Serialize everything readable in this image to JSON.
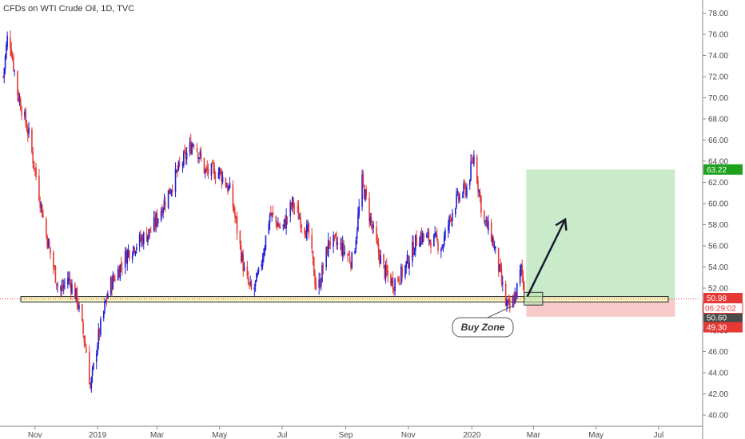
{
  "chart_data": {
    "type": "candlestick",
    "title": "CFDs on WTI Crude Oil, 1D, TVC",
    "y_ticks": [
      40,
      42,
      44,
      46,
      48,
      50,
      52,
      54,
      56,
      58,
      60,
      62,
      64,
      66,
      68,
      70,
      72,
      74,
      76,
      78
    ],
    "y_tick_labels": [
      "40.00",
      "42.00",
      "44.00",
      "46.00",
      "48.00",
      "50.00",
      "52.00",
      "54.00",
      "56.00",
      "58.00",
      "60.00",
      "62.00",
      "64.00",
      "66.00",
      "68.00",
      "70.00",
      "72.00",
      "74.00",
      "76.00",
      "78.00"
    ],
    "ylim": [
      39.2,
      79.2
    ],
    "x_ticks": [
      {
        "label": "Nov",
        "day": 31
      },
      {
        "label": "2019",
        "day": 92
      },
      {
        "label": "Mar",
        "day": 150
      },
      {
        "label": "May",
        "day": 211
      },
      {
        "label": "Jul",
        "day": 272
      },
      {
        "label": "Sep",
        "day": 334
      },
      {
        "label": "Nov",
        "day": 395
      },
      {
        "label": "2020",
        "day": 457
      },
      {
        "label": "Mar",
        "day": 517
      },
      {
        "label": "May",
        "day": 578
      },
      {
        "label": "Jul",
        "day": 639
      }
    ],
    "price_path": [
      {
        "day": 0,
        "price": 72.0
      },
      {
        "day": 5,
        "price": 76.5
      },
      {
        "day": 14,
        "price": 70.5
      },
      {
        "day": 25,
        "price": 66.5
      },
      {
        "day": 42,
        "price": 57.0
      },
      {
        "day": 55,
        "price": 51.5
      },
      {
        "day": 63,
        "price": 53.0
      },
      {
        "day": 72,
        "price": 51.0
      },
      {
        "day": 82,
        "price": 45.5
      },
      {
        "day": 85,
        "price": 42.5
      },
      {
        "day": 92,
        "price": 47.0
      },
      {
        "day": 103,
        "price": 52.0
      },
      {
        "day": 122,
        "price": 55.5
      },
      {
        "day": 145,
        "price": 57.5
      },
      {
        "day": 170,
        "price": 63.0
      },
      {
        "day": 186,
        "price": 66.0
      },
      {
        "day": 197,
        "price": 63.0
      },
      {
        "day": 211,
        "price": 63.0
      },
      {
        "day": 222,
        "price": 61.0
      },
      {
        "day": 236,
        "price": 53.0
      },
      {
        "day": 243,
        "price": 51.5
      },
      {
        "day": 250,
        "price": 53.5
      },
      {
        "day": 260,
        "price": 59.0
      },
      {
        "day": 272,
        "price": 57.5
      },
      {
        "day": 282,
        "price": 60.0
      },
      {
        "day": 298,
        "price": 57.0
      },
      {
        "day": 306,
        "price": 51.5
      },
      {
        "day": 318,
        "price": 56.5
      },
      {
        "day": 328,
        "price": 56.0
      },
      {
        "day": 341,
        "price": 54.5
      },
      {
        "day": 350,
        "price": 62.0
      },
      {
        "day": 358,
        "price": 58.5
      },
      {
        "day": 364,
        "price": 56.0
      },
      {
        "day": 372,
        "price": 53.5
      },
      {
        "day": 380,
        "price": 52.5
      },
      {
        "day": 390,
        "price": 53.5
      },
      {
        "day": 405,
        "price": 57.0
      },
      {
        "day": 420,
        "price": 56.5
      },
      {
        "day": 428,
        "price": 56.0
      },
      {
        "day": 440,
        "price": 60.0
      },
      {
        "day": 452,
        "price": 61.5
      },
      {
        "day": 459,
        "price": 64.5
      },
      {
        "day": 468,
        "price": 58.5
      },
      {
        "day": 476,
        "price": 57.0
      },
      {
        "day": 483,
        "price": 54.0
      },
      {
        "day": 490,
        "price": 50.5
      },
      {
        "day": 494,
        "price": 50.0
      },
      {
        "day": 500,
        "price": 51.5
      },
      {
        "day": 505,
        "price": 53.8
      },
      {
        "day": 507,
        "price": 52.5
      },
      {
        "day": 510,
        "price": 50.98
      }
    ],
    "annotations": {
      "support_zone": {
        "low": 50.7,
        "high": 51.2,
        "start_day": 0,
        "end_day": 660
      },
      "entry_box": {
        "low": 50.4,
        "high": 51.6,
        "start_day": 508,
        "end_day": 526
      },
      "target_zone": {
        "low": 50.98,
        "high": 63.22,
        "start_day": 510,
        "end_day": 655
      },
      "stop_zone": {
        "low": 49.3,
        "high": 50.98,
        "start_day": 510,
        "end_day": 655
      },
      "arrow": {
        "from_day": 511,
        "from_price": 51.2,
        "to_day": 548,
        "to_price": 58.5
      },
      "callout_text": "Buy Zone"
    },
    "price_tags": [
      {
        "value": 63.22,
        "label": "63.22",
        "color": "#1ea21e"
      },
      {
        "value": 50.98,
        "label": "50.98",
        "color": "#e53935"
      },
      {
        "value": 50.6,
        "label": "50.60",
        "color": "#4a4a4a"
      },
      {
        "value": 49.3,
        "label": "49.30",
        "color": "#e53935"
      }
    ],
    "countdown": {
      "label": "06:29:02",
      "color": "#e53935"
    },
    "colors": {
      "up": "#1f1fd6",
      "down": "#e53935"
    }
  }
}
